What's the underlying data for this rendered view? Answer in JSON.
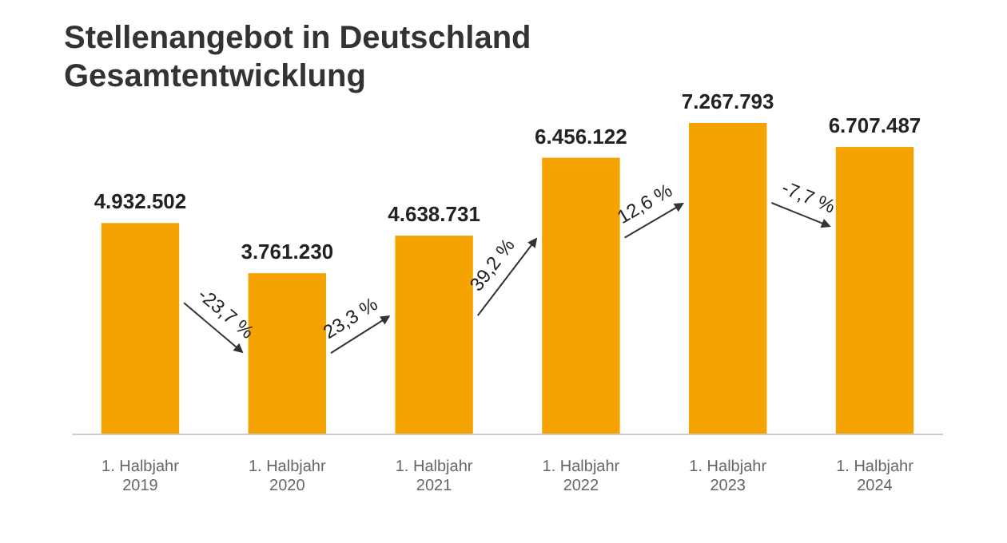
{
  "chart_data": {
    "type": "bar",
    "title": "Stellenangebot in Deutschland",
    "subtitle": "Gesamtentwicklung",
    "categories": [
      "1. Halbjahr 2019",
      "1. Halbjahr 2020",
      "1. Halbjahr 2021",
      "1. Halbjahr 2022",
      "1. Halbjahr 2023",
      "1. Halbjahr 2024"
    ],
    "values": [
      4932502,
      3761230,
      4638731,
      6456122,
      7267793,
      6707487
    ],
    "color": "#f5a300",
    "value_labels": [
      "4.932.502",
      "3.761.230",
      "4.638.731",
      "6.456.122",
      "7.267.793",
      "6.707.487"
    ],
    "annotations": [
      "-23,7 %",
      "23,3 %",
      "39,2 %",
      "12,6 %",
      "-7,7 %"
    ]
  }
}
